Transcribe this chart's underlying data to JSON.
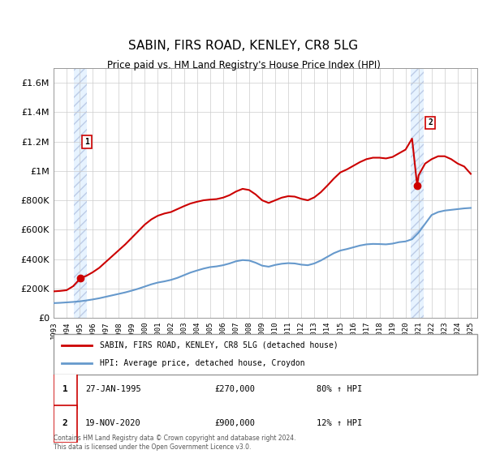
{
  "title": "SABIN, FIRS ROAD, KENLEY, CR8 5LG",
  "subtitle": "Price paid vs. HM Land Registry's House Price Index (HPI)",
  "ylabel": "",
  "xlabel": "",
  "ylim": [
    0,
    1700000
  ],
  "xlim_start": 1993.0,
  "xlim_end": 2025.5,
  "yticks": [
    0,
    200000,
    400000,
    600000,
    800000,
    1000000,
    1200000,
    1400000,
    1600000
  ],
  "ytick_labels": [
    "£0",
    "£200K",
    "£400K",
    "£600K",
    "£800K",
    "£1M",
    "£1.2M",
    "£1.4M",
    "£1.6M"
  ],
  "xticks": [
    1993,
    1994,
    1995,
    1996,
    1997,
    1998,
    1999,
    2000,
    2001,
    2002,
    2003,
    2004,
    2005,
    2006,
    2007,
    2008,
    2009,
    2010,
    2011,
    2012,
    2013,
    2014,
    2015,
    2016,
    2017,
    2018,
    2019,
    2020,
    2021,
    2022,
    2023,
    2024,
    2025
  ],
  "sale1_x": 1995.07,
  "sale1_y": 270000,
  "sale2_x": 2020.89,
  "sale2_y": 900000,
  "sale1_label": "1",
  "sale2_label": "2",
  "red_color": "#cc0000",
  "blue_color": "#6699cc",
  "bg_hatch_color": "#ddeeff",
  "grid_color": "#cccccc",
  "legend_line1": "SABIN, FIRS ROAD, KENLEY, CR8 5LG (detached house)",
  "legend_line2": "HPI: Average price, detached house, Croydon",
  "annotation1_date": "27-JAN-1995",
  "annotation1_price": "£270,000",
  "annotation1_hpi": "80% ↑ HPI",
  "annotation2_date": "19-NOV-2020",
  "annotation2_price": "£900,000",
  "annotation2_hpi": "12% ↑ HPI",
  "footer": "Contains HM Land Registry data © Crown copyright and database right 2024.\nThis data is licensed under the Open Government Licence v3.0.",
  "hpi_x": [
    1993,
    1993.5,
    1994,
    1994.5,
    1995,
    1995.5,
    1996,
    1996.5,
    1997,
    1997.5,
    1998,
    1998.5,
    1999,
    1999.5,
    2000,
    2000.5,
    2001,
    2001.5,
    2002,
    2002.5,
    2003,
    2003.5,
    2004,
    2004.5,
    2005,
    2005.5,
    2006,
    2006.5,
    2007,
    2007.5,
    2008,
    2008.5,
    2009,
    2009.5,
    2010,
    2010.5,
    2011,
    2011.5,
    2012,
    2012.5,
    2013,
    2013.5,
    2014,
    2014.5,
    2015,
    2015.5,
    2016,
    2016.5,
    2017,
    2017.5,
    2018,
    2018.5,
    2019,
    2019.5,
    2020,
    2020.5,
    2021,
    2021.5,
    2022,
    2022.5,
    2023,
    2023.5,
    2024,
    2024.5,
    2025
  ],
  "hpi_y": [
    100000,
    102000,
    105000,
    108000,
    112000,
    118000,
    125000,
    133000,
    143000,
    153000,
    163000,
    173000,
    185000,
    198000,
    213000,
    228000,
    240000,
    248000,
    258000,
    272000,
    290000,
    308000,
    322000,
    335000,
    345000,
    350000,
    358000,
    370000,
    385000,
    393000,
    390000,
    375000,
    355000,
    348000,
    360000,
    368000,
    372000,
    370000,
    362000,
    358000,
    370000,
    390000,
    415000,
    440000,
    458000,
    468000,
    480000,
    492000,
    500000,
    503000,
    502000,
    500000,
    505000,
    515000,
    520000,
    535000,
    580000,
    640000,
    700000,
    720000,
    730000,
    735000,
    740000,
    745000,
    748000
  ],
  "red_x": [
    1993,
    1993.5,
    1994,
    1994.5,
    1995.07,
    1995.5,
    1996,
    1996.5,
    1997,
    1997.5,
    1998,
    1998.5,
    1999,
    1999.5,
    2000,
    2000.5,
    2001,
    2001.5,
    2002,
    2002.5,
    2003,
    2003.5,
    2004,
    2004.5,
    2005,
    2005.5,
    2006,
    2006.5,
    2007,
    2007.5,
    2008,
    2008.5,
    2009,
    2009.5,
    2010,
    2010.5,
    2011,
    2011.5,
    2012,
    2012.5,
    2013,
    2013.5,
    2014,
    2014.5,
    2015,
    2015.5,
    2016,
    2016.5,
    2017,
    2017.5,
    2018,
    2018.5,
    2019,
    2019.5,
    2020,
    2020.5,
    2020.89,
    2021,
    2021.5,
    2022,
    2022.5,
    2023,
    2023.5,
    2024,
    2024.5,
    2025
  ],
  "red_y": [
    180000,
    183000,
    188000,
    215000,
    270000,
    285000,
    310000,
    340000,
    380000,
    420000,
    460000,
    500000,
    545000,
    590000,
    635000,
    670000,
    695000,
    710000,
    720000,
    740000,
    760000,
    778000,
    790000,
    800000,
    805000,
    808000,
    818000,
    835000,
    860000,
    878000,
    870000,
    840000,
    800000,
    782000,
    800000,
    818000,
    828000,
    825000,
    810000,
    800000,
    820000,
    855000,
    900000,
    948000,
    990000,
    1010000,
    1035000,
    1060000,
    1080000,
    1090000,
    1090000,
    1085000,
    1095000,
    1120000,
    1145000,
    1220000,
    900000,
    970000,
    1050000,
    1080000,
    1100000,
    1100000,
    1080000,
    1050000,
    1030000,
    980000
  ]
}
